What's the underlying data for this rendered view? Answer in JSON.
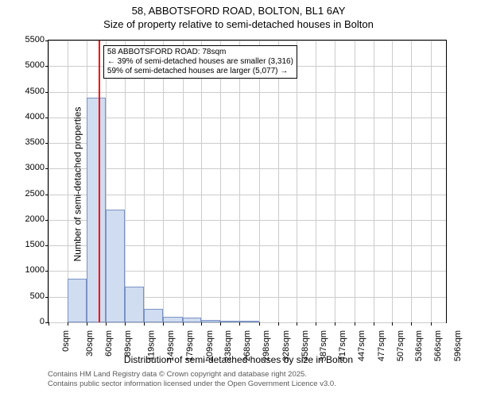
{
  "title_line1": "58, ABBOTSFORD ROAD, BOLTON, BL1 6AY",
  "title_line2": "Size of property relative to semi-detached houses in Bolton",
  "y_axis_title": "Number of semi-detached properties",
  "x_axis_title": "Distribution of semi-detached houses by size in Bolton",
  "footer_line1": "Contains HM Land Registry data © Crown copyright and database right 2025.",
  "footer_line2": "Contains public sector information licensed under the Open Government Licence v3.0.",
  "annotation_line1": "58 ABBOTSFORD ROAD: 78sqm",
  "annotation_line2": "← 39% of semi-detached houses are smaller (3,316)",
  "annotation_line3": "59% of semi-detached houses are larger (5,077) →",
  "chart": {
    "type": "histogram",
    "background_color": "#ffffff",
    "grid_color": "#cccccc",
    "border_color": "#000000",
    "bar_fill": "#d0dcf0",
    "bar_border": "#7a93c4",
    "marker_color": "#ff0000",
    "marker_x": 78,
    "x_min": 0,
    "x_max": 620,
    "y_min": 0,
    "y_max": 5500,
    "y_ticks": [
      0,
      500,
      1000,
      1500,
      2000,
      2500,
      3000,
      3500,
      4000,
      4500,
      5000,
      5500
    ],
    "x_ticks": [
      {
        "pos": 0,
        "label": "0sqm"
      },
      {
        "pos": 30,
        "label": "30sqm"
      },
      {
        "pos": 60,
        "label": "60sqm"
      },
      {
        "pos": 89,
        "label": "89sqm"
      },
      {
        "pos": 119,
        "label": "119sqm"
      },
      {
        "pos": 149,
        "label": "149sqm"
      },
      {
        "pos": 179,
        "label": "179sqm"
      },
      {
        "pos": 209,
        "label": "209sqm"
      },
      {
        "pos": 238,
        "label": "238sqm"
      },
      {
        "pos": 268,
        "label": "268sqm"
      },
      {
        "pos": 298,
        "label": "298sqm"
      },
      {
        "pos": 328,
        "label": "328sqm"
      },
      {
        "pos": 358,
        "label": "358sqm"
      },
      {
        "pos": 387,
        "label": "387sqm"
      },
      {
        "pos": 417,
        "label": "417sqm"
      },
      {
        "pos": 447,
        "label": "447sqm"
      },
      {
        "pos": 477,
        "label": "477sqm"
      },
      {
        "pos": 507,
        "label": "507sqm"
      },
      {
        "pos": 536,
        "label": "536sqm"
      },
      {
        "pos": 566,
        "label": "566sqm"
      },
      {
        "pos": 596,
        "label": "596sqm"
      }
    ],
    "bars": [
      {
        "x0": 30,
        "x1": 60,
        "y": 850
      },
      {
        "x0": 60,
        "x1": 89,
        "y": 4380
      },
      {
        "x0": 89,
        "x1": 119,
        "y": 2200
      },
      {
        "x0": 119,
        "x1": 149,
        "y": 700
      },
      {
        "x0": 149,
        "x1": 179,
        "y": 260
      },
      {
        "x0": 179,
        "x1": 209,
        "y": 110
      },
      {
        "x0": 209,
        "x1": 238,
        "y": 100
      },
      {
        "x0": 238,
        "x1": 268,
        "y": 40
      },
      {
        "x0": 268,
        "x1": 298,
        "y": 30
      },
      {
        "x0": 298,
        "x1": 328,
        "y": 10
      }
    ],
    "title_fontsize": 13,
    "axis_label_fontsize": 12,
    "tick_fontsize": 11,
    "annotation_fontsize": 10,
    "footer_color": "#595959",
    "footer_fontsize": 9.5
  }
}
